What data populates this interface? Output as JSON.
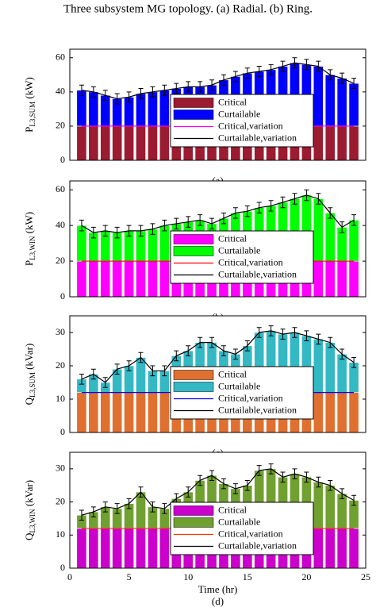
{
  "caption": "Three subsystem MG topology. (a) Radial. (b) Ring.",
  "chart_data": [
    {
      "type": "stacked_bar",
      "label": "(a)",
      "ylabel": {
        "main": "P",
        "sub": "L3,SUM",
        "unit": " (kW)"
      },
      "x": [
        1,
        2,
        3,
        4,
        5,
        6,
        7,
        8,
        9,
        10,
        11,
        12,
        13,
        14,
        15,
        16,
        17,
        18,
        19,
        20,
        21,
        22,
        23,
        24
      ],
      "xlim": [
        0,
        25
      ],
      "ylim": [
        0,
        65
      ],
      "yticks": [
        0,
        20,
        40,
        60
      ],
      "legend": "lower right",
      "series": [
        {
          "name": "Critical",
          "kind": "bar",
          "color": "#9b1b30",
          "values": [
            20,
            20,
            20,
            20,
            20,
            20,
            20,
            20,
            20,
            20,
            20,
            20,
            20,
            20,
            20,
            20,
            20,
            20,
            20,
            20,
            20,
            20,
            20,
            20
          ]
        },
        {
          "name": "Curtailable",
          "kind": "bar",
          "color": "#0000ff",
          "values": [
            21,
            20,
            18,
            16,
            17,
            19,
            20,
            21,
            22,
            23,
            23,
            24,
            27,
            29,
            31,
            32,
            33,
            35,
            37,
            36,
            35,
            30,
            28,
            25
          ],
          "errors": [
            3,
            3,
            3,
            3,
            3,
            3,
            3,
            3,
            3,
            3,
            3,
            3,
            3,
            3,
            3,
            3,
            3,
            3,
            3,
            3,
            3,
            3,
            3,
            3
          ]
        },
        {
          "name": "Critical,variation",
          "kind": "line",
          "color": "#ff00ff",
          "values": [
            20,
            20,
            20,
            20,
            20,
            20,
            20,
            20,
            20,
            20,
            20,
            20,
            20,
            20,
            20,
            20,
            20,
            20,
            20,
            20,
            20,
            20,
            20,
            20
          ]
        },
        {
          "name": "Curtailable,variation",
          "kind": "line",
          "color": "#000000",
          "values": [
            41,
            40,
            38,
            36,
            37,
            39,
            40,
            41,
            42,
            43,
            43,
            44,
            47,
            49,
            51,
            52,
            53,
            55,
            57,
            56,
            55,
            50,
            48,
            45
          ]
        }
      ]
    },
    {
      "type": "stacked_bar",
      "label": "(b)",
      "ylabel": {
        "main": "P",
        "sub": "L3,WIN",
        "unit": " (kW)"
      },
      "x": [
        1,
        2,
        3,
        4,
        5,
        6,
        7,
        8,
        9,
        10,
        11,
        12,
        13,
        14,
        15,
        16,
        17,
        18,
        19,
        20,
        21,
        22,
        23,
        24
      ],
      "xlim": [
        0,
        25
      ],
      "ylim": [
        0,
        65
      ],
      "yticks": [
        0,
        20,
        40,
        60
      ],
      "legend": "lower right",
      "series": [
        {
          "name": "Critical",
          "kind": "bar",
          "color": "#ff00ff",
          "values": [
            20,
            20,
            20,
            20,
            20,
            20,
            20,
            20,
            20,
            20,
            20,
            20,
            20,
            20,
            20,
            20,
            20,
            20,
            20,
            20,
            20,
            20,
            20,
            20
          ]
        },
        {
          "name": "Curtailable",
          "kind": "bar",
          "color": "#00ff00",
          "values": [
            20,
            16,
            17,
            16,
            17,
            17,
            18,
            20,
            21,
            22,
            23,
            21,
            24,
            27,
            28,
            30,
            31,
            33,
            35,
            37,
            35,
            27,
            19,
            23
          ],
          "errors": [
            3,
            3,
            3,
            3,
            3,
            3,
            3,
            3,
            3,
            3,
            3,
            3,
            3,
            3,
            3,
            3,
            3,
            3,
            3,
            3,
            3,
            3,
            3,
            3
          ]
        },
        {
          "name": "Critical,variation",
          "kind": "line",
          "color": "#ff0000",
          "values": [
            20,
            20,
            20,
            20,
            20,
            20,
            20,
            20,
            20,
            20,
            20,
            20,
            20,
            20,
            20,
            20,
            20,
            20,
            20,
            20,
            20,
            20,
            20,
            20
          ]
        },
        {
          "name": "Curtailable,variation",
          "kind": "line",
          "color": "#000000",
          "values": [
            40,
            36,
            37,
            36,
            37,
            37,
            38,
            40,
            41,
            42,
            43,
            41,
            44,
            47,
            48,
            50,
            51,
            53,
            55,
            57,
            55,
            47,
            39,
            43
          ]
        }
      ]
    },
    {
      "type": "stacked_bar",
      "label": "(c)",
      "ylabel": {
        "main": "Q",
        "sub": "L3,SUM",
        "unit": " (kVar)"
      },
      "x": [
        1,
        2,
        3,
        4,
        5,
        6,
        7,
        8,
        9,
        10,
        11,
        12,
        13,
        14,
        15,
        16,
        17,
        18,
        19,
        20,
        21,
        22,
        23,
        24
      ],
      "xlim": [
        0,
        25
      ],
      "ylim": [
        0,
        35
      ],
      "yticks": [
        0,
        10,
        20,
        30
      ],
      "legend": "lower right",
      "series": [
        {
          "name": "Critical",
          "kind": "bar",
          "color": "#e07030",
          "values": [
            12,
            12,
            12,
            12,
            12,
            12,
            12,
            12,
            12,
            12,
            12,
            12,
            12,
            12,
            12,
            12,
            12,
            12,
            12,
            12,
            12,
            12,
            12,
            12
          ]
        },
        {
          "name": "Curtailable",
          "kind": "bar",
          "color": "#33b8c4",
          "values": [
            4,
            5.5,
            3,
            7,
            8,
            10.5,
            6.5,
            6.5,
            11,
            12.5,
            15,
            15,
            12.5,
            11.5,
            14,
            18,
            18.5,
            17.5,
            18,
            17,
            16,
            15,
            11.5,
            9
          ],
          "errors": [
            1.5,
            1.5,
            1.5,
            1.5,
            1.5,
            1.5,
            1.5,
            1.5,
            1.5,
            1.5,
            1.5,
            1.5,
            1.5,
            1.5,
            1.5,
            1.5,
            1.5,
            1.5,
            1.5,
            1.5,
            1.5,
            1.5,
            1.5,
            1.5
          ]
        },
        {
          "name": "Critical,variation",
          "kind": "line",
          "color": "#0000ff",
          "values": [
            12,
            12,
            12,
            12,
            12,
            12,
            12,
            12,
            12,
            12,
            12,
            12,
            12,
            12,
            12,
            12,
            12,
            12,
            12,
            12,
            12,
            12,
            12,
            12
          ]
        },
        {
          "name": "Curtailable,variation",
          "kind": "line",
          "color": "#000000",
          "values": [
            16,
            17.5,
            15,
            19,
            20,
            22.5,
            18.5,
            18.5,
            23,
            24.5,
            27,
            27,
            24.5,
            23.5,
            26,
            30,
            30.5,
            29.5,
            30,
            29,
            28,
            27,
            23.5,
            21
          ]
        }
      ]
    },
    {
      "type": "stacked_bar",
      "label": "(d)",
      "ylabel": {
        "main": "Q",
        "sub": "L3,WIN",
        "unit": " (kVar)"
      },
      "xlabel": "Time (hr)",
      "x": [
        1,
        2,
        3,
        4,
        5,
        6,
        7,
        8,
        9,
        10,
        11,
        12,
        13,
        14,
        15,
        16,
        17,
        18,
        19,
        20,
        21,
        22,
        23,
        24
      ],
      "xlim": [
        0,
        25
      ],
      "xticks": [
        0,
        5,
        10,
        15,
        20,
        25
      ],
      "ylim": [
        0,
        35
      ],
      "yticks": [
        0,
        10,
        20,
        30
      ],
      "legend": "lower right",
      "series": [
        {
          "name": "Critical",
          "kind": "bar",
          "color": "#cc00cc",
          "values": [
            12,
            12,
            12,
            12,
            12,
            12,
            12,
            12,
            12,
            12,
            12,
            12,
            12,
            12,
            12,
            12,
            12,
            12,
            12,
            12,
            12,
            12,
            12,
            12
          ]
        },
        {
          "name": "Curtailable",
          "kind": "bar",
          "color": "#70a030",
          "values": [
            4,
            5,
            6.5,
            6,
            7.5,
            11,
            6.5,
            6,
            9,
            11,
            14.5,
            16,
            13.5,
            12,
            13,
            17.5,
            18,
            15.5,
            16.5,
            15.5,
            14,
            13,
            10.5,
            8.5
          ],
          "errors": [
            1.5,
            1.5,
            1.5,
            1.5,
            1.5,
            1.5,
            1.5,
            1.5,
            1.5,
            1.5,
            1.5,
            1.5,
            1.5,
            1.5,
            1.5,
            1.5,
            1.5,
            1.5,
            1.5,
            1.5,
            1.5,
            1.5,
            1.5,
            1.5
          ]
        },
        {
          "name": "Critical,variation",
          "kind": "line",
          "color": "#ff3300",
          "values": [
            12,
            12,
            12,
            12,
            12,
            12,
            12,
            12,
            12,
            12,
            12,
            12,
            12,
            12,
            12,
            12,
            12,
            12,
            12,
            12,
            12,
            12,
            12,
            12
          ]
        },
        {
          "name": "Curtailable,variation",
          "kind": "line",
          "color": "#000000",
          "values": [
            16,
            17,
            18.5,
            18,
            19.5,
            23,
            18.5,
            18,
            21,
            23,
            26.5,
            28,
            25.5,
            24,
            25,
            29.5,
            30,
            27.5,
            28.5,
            27.5,
            26,
            25,
            22.5,
            20.5
          ]
        }
      ]
    }
  ]
}
